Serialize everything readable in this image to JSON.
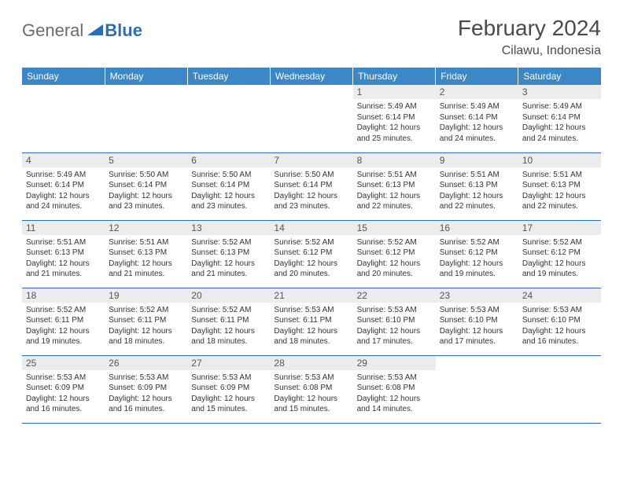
{
  "brand": {
    "part1": "General",
    "part2": "Blue",
    "icon_color": "#2a6fb5"
  },
  "header": {
    "title": "February 2024",
    "location": "Cilawu, Indonesia"
  },
  "colors": {
    "header_row_bg": "#3b87c8",
    "header_row_text": "#ffffff",
    "daynum_bg": "#ececec",
    "border": "#2a6fb5",
    "body_text": "#333333"
  },
  "fonts": {
    "title_size": 28,
    "location_size": 16,
    "th_size": 12,
    "daynum_size": 12,
    "cell_size": 10
  },
  "weekdays": [
    "Sunday",
    "Monday",
    "Tuesday",
    "Wednesday",
    "Thursday",
    "Friday",
    "Saturday"
  ],
  "grid": [
    [
      null,
      null,
      null,
      null,
      {
        "n": "1",
        "sunrise": "5:49 AM",
        "sunset": "6:14 PM",
        "daylight": "12 hours and 25 minutes."
      },
      {
        "n": "2",
        "sunrise": "5:49 AM",
        "sunset": "6:14 PM",
        "daylight": "12 hours and 24 minutes."
      },
      {
        "n": "3",
        "sunrise": "5:49 AM",
        "sunset": "6:14 PM",
        "daylight": "12 hours and 24 minutes."
      }
    ],
    [
      {
        "n": "4",
        "sunrise": "5:49 AM",
        "sunset": "6:14 PM",
        "daylight": "12 hours and 24 minutes."
      },
      {
        "n": "5",
        "sunrise": "5:50 AM",
        "sunset": "6:14 PM",
        "daylight": "12 hours and 23 minutes."
      },
      {
        "n": "6",
        "sunrise": "5:50 AM",
        "sunset": "6:14 PM",
        "daylight": "12 hours and 23 minutes."
      },
      {
        "n": "7",
        "sunrise": "5:50 AM",
        "sunset": "6:14 PM",
        "daylight": "12 hours and 23 minutes."
      },
      {
        "n": "8",
        "sunrise": "5:51 AM",
        "sunset": "6:13 PM",
        "daylight": "12 hours and 22 minutes."
      },
      {
        "n": "9",
        "sunrise": "5:51 AM",
        "sunset": "6:13 PM",
        "daylight": "12 hours and 22 minutes."
      },
      {
        "n": "10",
        "sunrise": "5:51 AM",
        "sunset": "6:13 PM",
        "daylight": "12 hours and 22 minutes."
      }
    ],
    [
      {
        "n": "11",
        "sunrise": "5:51 AM",
        "sunset": "6:13 PM",
        "daylight": "12 hours and 21 minutes."
      },
      {
        "n": "12",
        "sunrise": "5:51 AM",
        "sunset": "6:13 PM",
        "daylight": "12 hours and 21 minutes."
      },
      {
        "n": "13",
        "sunrise": "5:52 AM",
        "sunset": "6:13 PM",
        "daylight": "12 hours and 21 minutes."
      },
      {
        "n": "14",
        "sunrise": "5:52 AM",
        "sunset": "6:12 PM",
        "daylight": "12 hours and 20 minutes."
      },
      {
        "n": "15",
        "sunrise": "5:52 AM",
        "sunset": "6:12 PM",
        "daylight": "12 hours and 20 minutes."
      },
      {
        "n": "16",
        "sunrise": "5:52 AM",
        "sunset": "6:12 PM",
        "daylight": "12 hours and 19 minutes."
      },
      {
        "n": "17",
        "sunrise": "5:52 AM",
        "sunset": "6:12 PM",
        "daylight": "12 hours and 19 minutes."
      }
    ],
    [
      {
        "n": "18",
        "sunrise": "5:52 AM",
        "sunset": "6:11 PM",
        "daylight": "12 hours and 19 minutes."
      },
      {
        "n": "19",
        "sunrise": "5:52 AM",
        "sunset": "6:11 PM",
        "daylight": "12 hours and 18 minutes."
      },
      {
        "n": "20",
        "sunrise": "5:52 AM",
        "sunset": "6:11 PM",
        "daylight": "12 hours and 18 minutes."
      },
      {
        "n": "21",
        "sunrise": "5:53 AM",
        "sunset": "6:11 PM",
        "daylight": "12 hours and 18 minutes."
      },
      {
        "n": "22",
        "sunrise": "5:53 AM",
        "sunset": "6:10 PM",
        "daylight": "12 hours and 17 minutes."
      },
      {
        "n": "23",
        "sunrise": "5:53 AM",
        "sunset": "6:10 PM",
        "daylight": "12 hours and 17 minutes."
      },
      {
        "n": "24",
        "sunrise": "5:53 AM",
        "sunset": "6:10 PM",
        "daylight": "12 hours and 16 minutes."
      }
    ],
    [
      {
        "n": "25",
        "sunrise": "5:53 AM",
        "sunset": "6:09 PM",
        "daylight": "12 hours and 16 minutes."
      },
      {
        "n": "26",
        "sunrise": "5:53 AM",
        "sunset": "6:09 PM",
        "daylight": "12 hours and 16 minutes."
      },
      {
        "n": "27",
        "sunrise": "5:53 AM",
        "sunset": "6:09 PM",
        "daylight": "12 hours and 15 minutes."
      },
      {
        "n": "28",
        "sunrise": "5:53 AM",
        "sunset": "6:08 PM",
        "daylight": "12 hours and 15 minutes."
      },
      {
        "n": "29",
        "sunrise": "5:53 AM",
        "sunset": "6:08 PM",
        "daylight": "12 hours and 14 minutes."
      },
      null,
      null
    ]
  ],
  "labels": {
    "sunrise": "Sunrise: ",
    "sunset": "Sunset: ",
    "daylight": "Daylight: "
  }
}
